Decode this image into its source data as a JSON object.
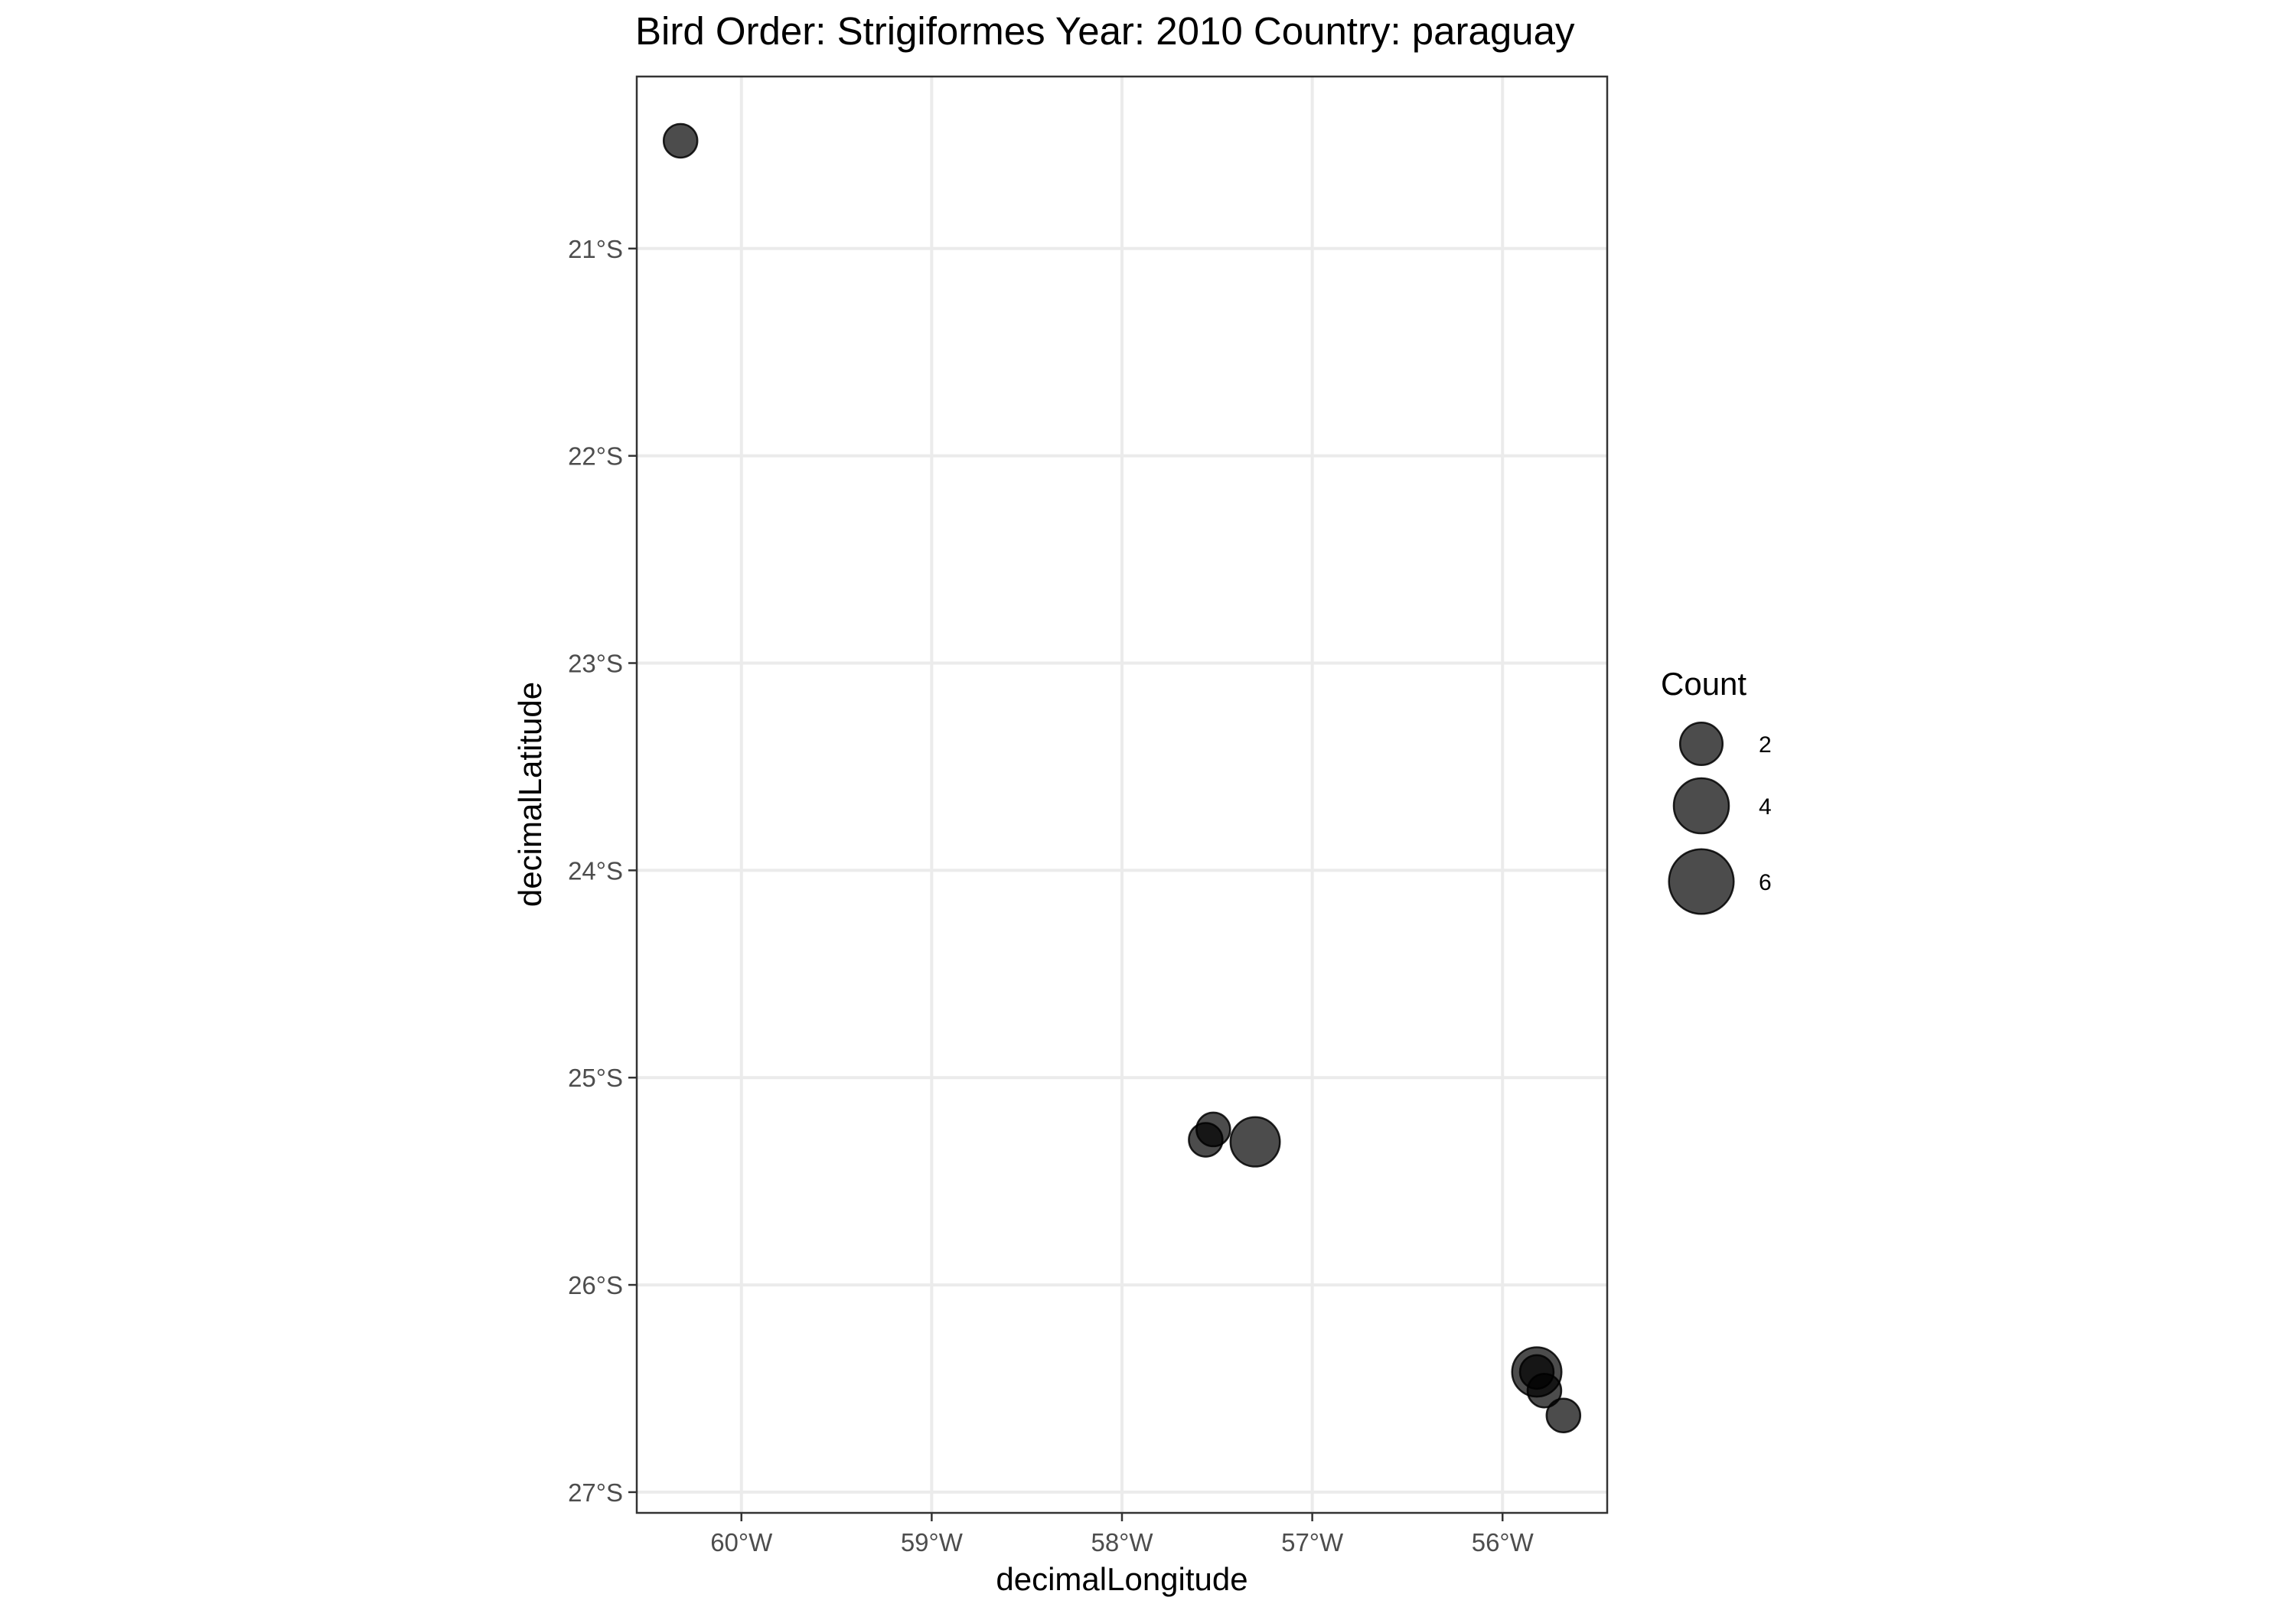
{
  "chart_data": {
    "type": "scatter",
    "title": "Bird Order: Strigiformes Year: 2010 Country: paraguay",
    "xlabel": "decimalLongitude",
    "ylabel": "decimalLatitude",
    "xlim": [
      -60.55,
      -55.45
    ],
    "ylim": [
      -27.1,
      -20.17
    ],
    "x_ticks": [
      -60,
      -59,
      -58,
      -57,
      -56
    ],
    "x_tick_labels": [
      "60°W",
      "59°W",
      "58°W",
      "57°W",
      "56°W"
    ],
    "y_ticks": [
      -21,
      -22,
      -23,
      -24,
      -25,
      -26,
      -27
    ],
    "y_tick_labels": [
      "21°S",
      "22°S",
      "23°S",
      "24°S",
      "25°S",
      "26°S",
      "27°S"
    ],
    "grid": true,
    "points": [
      {
        "x": -60.32,
        "y": -20.48,
        "count": 1
      },
      {
        "x": -57.52,
        "y": -25.25,
        "count": 1
      },
      {
        "x": -57.56,
        "y": -25.3,
        "count": 1
      },
      {
        "x": -57.3,
        "y": -25.31,
        "count": 3
      },
      {
        "x": -55.82,
        "y": -26.42,
        "count": 3
      },
      {
        "x": -55.82,
        "y": -26.42,
        "count": 1
      },
      {
        "x": -55.78,
        "y": -26.51,
        "count": 1
      },
      {
        "x": -55.68,
        "y": -26.63,
        "count": 1
      }
    ],
    "point_color": "#000000",
    "point_opacity": 0.7,
    "size_legend": {
      "title": "Count",
      "placement": "right",
      "entries": [
        {
          "value": 2,
          "label": "2"
        },
        {
          "value": 4,
          "label": "4"
        },
        {
          "value": 6,
          "label": "6"
        }
      ]
    }
  }
}
